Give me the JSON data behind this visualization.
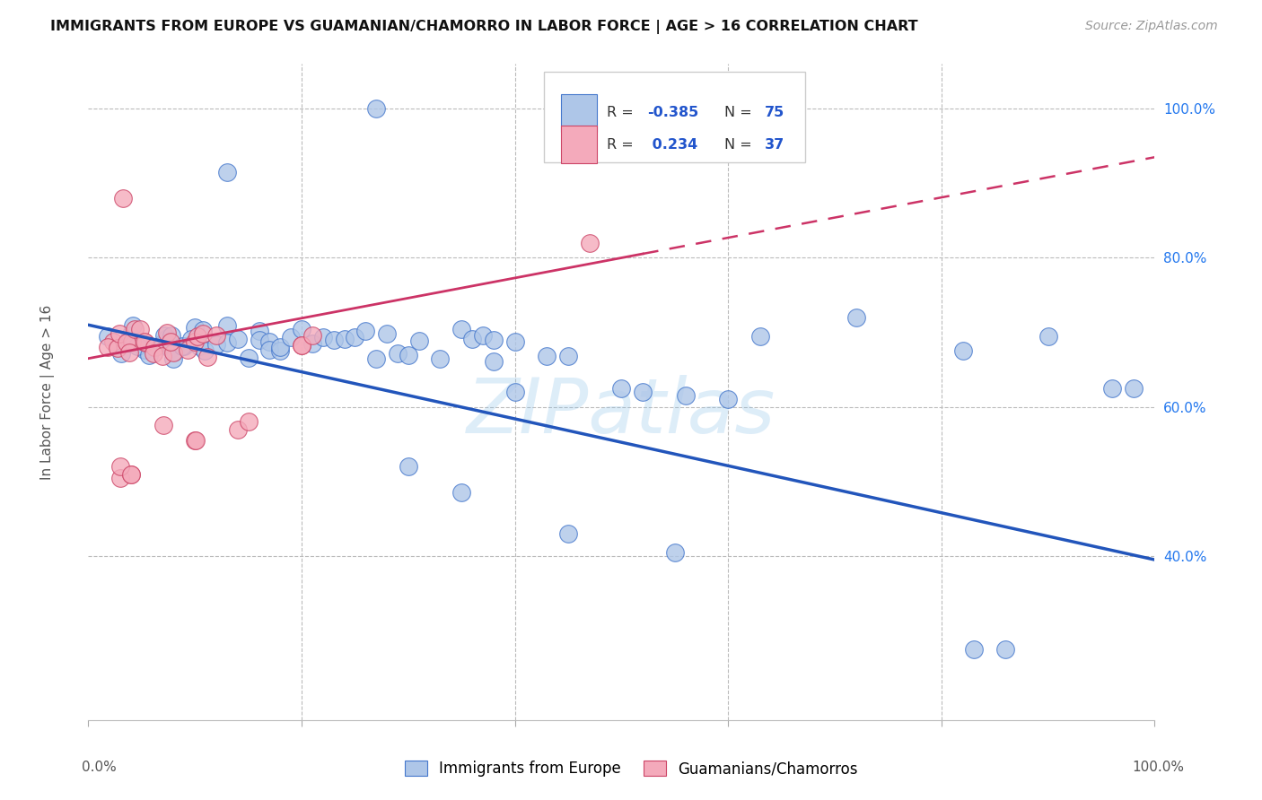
{
  "title": "IMMIGRANTS FROM EUROPE VS GUAMANIAN/CHAMORRO IN LABOR FORCE | AGE > 16 CORRELATION CHART",
  "source": "Source: ZipAtlas.com",
  "ylabel": "In Labor Force | Age > 16",
  "legend_blue_r": "-0.385",
  "legend_blue_n": "75",
  "legend_pink_r": "0.234",
  "legend_pink_n": "37",
  "legend_label_blue": "Immigrants from Europe",
  "legend_label_pink": "Guamanians/Chamorros",
  "blue_face": "#aec6e8",
  "blue_edge": "#4477cc",
  "pink_face": "#f4aabb",
  "pink_edge": "#cc4466",
  "blue_line_color": "#2255bb",
  "pink_line_color": "#cc3366",
  "watermark": "ZIPatlas",
  "bg": "#ffffff",
  "grid_color": "#bbbbbb",
  "blue_line_x0": 0.0,
  "blue_line_y0": 0.71,
  "blue_line_x1": 1.0,
  "blue_line_y1": 0.395,
  "pink_line_x0": 0.0,
  "pink_line_y0": 0.665,
  "pink_line_x1": 1.0,
  "pink_line_y1": 0.935,
  "xlim": [
    0.0,
    1.0
  ],
  "ylim": [
    0.18,
    1.06
  ],
  "yticks": [
    0.4,
    0.6,
    0.8,
    1.0
  ],
  "ytick_labels": [
    "40.0%",
    "60.0%",
    "80.0%",
    "100.0%"
  ],
  "blue_x": [
    0.27,
    0.13,
    0.02,
    0.03,
    0.04,
    0.04,
    0.05,
    0.05,
    0.05,
    0.06,
    0.06,
    0.07,
    0.07,
    0.07,
    0.08,
    0.08,
    0.08,
    0.08,
    0.09,
    0.09,
    0.1,
    0.1,
    0.1,
    0.11,
    0.11,
    0.12,
    0.13,
    0.13,
    0.14,
    0.15,
    0.16,
    0.16,
    0.17,
    0.17,
    0.18,
    0.18,
    0.19,
    0.2,
    0.21,
    0.22,
    0.23,
    0.24,
    0.25,
    0.26,
    0.27,
    0.28,
    0.29,
    0.3,
    0.31,
    0.33,
    0.35,
    0.36,
    0.37,
    0.38,
    0.38,
    0.4,
    0.4,
    0.43,
    0.45,
    0.5,
    0.52,
    0.56,
    0.6,
    0.63,
    0.72,
    0.82,
    0.83,
    0.86,
    0.9,
    0.96,
    0.98,
    0.3,
    0.35,
    0.45,
    0.55
  ],
  "blue_y": [
    1.0,
    0.915,
    0.685,
    0.685,
    0.685,
    0.685,
    0.685,
    0.685,
    0.685,
    0.685,
    0.685,
    0.685,
    0.685,
    0.685,
    0.685,
    0.685,
    0.685,
    0.685,
    0.685,
    0.685,
    0.685,
    0.685,
    0.685,
    0.685,
    0.685,
    0.685,
    0.685,
    0.685,
    0.685,
    0.685,
    0.685,
    0.685,
    0.685,
    0.685,
    0.685,
    0.685,
    0.685,
    0.685,
    0.685,
    0.685,
    0.685,
    0.685,
    0.685,
    0.685,
    0.685,
    0.685,
    0.685,
    0.685,
    0.685,
    0.685,
    0.685,
    0.685,
    0.685,
    0.685,
    0.685,
    0.685,
    0.62,
    0.685,
    0.685,
    0.625,
    0.62,
    0.615,
    0.61,
    0.685,
    0.72,
    0.685,
    0.275,
    0.275,
    0.685,
    0.625,
    0.625,
    0.52,
    0.485,
    0.43,
    0.405
  ],
  "pink_x": [
    0.03,
    0.47,
    0.02,
    0.02,
    0.03,
    0.03,
    0.04,
    0.04,
    0.04,
    0.04,
    0.05,
    0.05,
    0.05,
    0.06,
    0.06,
    0.07,
    0.07,
    0.08,
    0.08,
    0.09,
    0.1,
    0.1,
    0.11,
    0.11,
    0.12,
    0.13,
    0.14,
    0.15,
    0.16,
    0.17,
    0.18,
    0.19,
    0.2,
    0.2,
    0.21,
    0.15,
    0.1
  ],
  "pink_y": [
    0.88,
    0.82,
    0.685,
    0.685,
    0.685,
    0.685,
    0.685,
    0.685,
    0.685,
    0.685,
    0.685,
    0.685,
    0.685,
    0.685,
    0.685,
    0.685,
    0.685,
    0.685,
    0.685,
    0.685,
    0.685,
    0.685,
    0.685,
    0.685,
    0.685,
    0.685,
    0.685,
    0.685,
    0.685,
    0.685,
    0.685,
    0.685,
    0.685,
    0.685,
    0.685,
    0.58,
    0.555
  ]
}
